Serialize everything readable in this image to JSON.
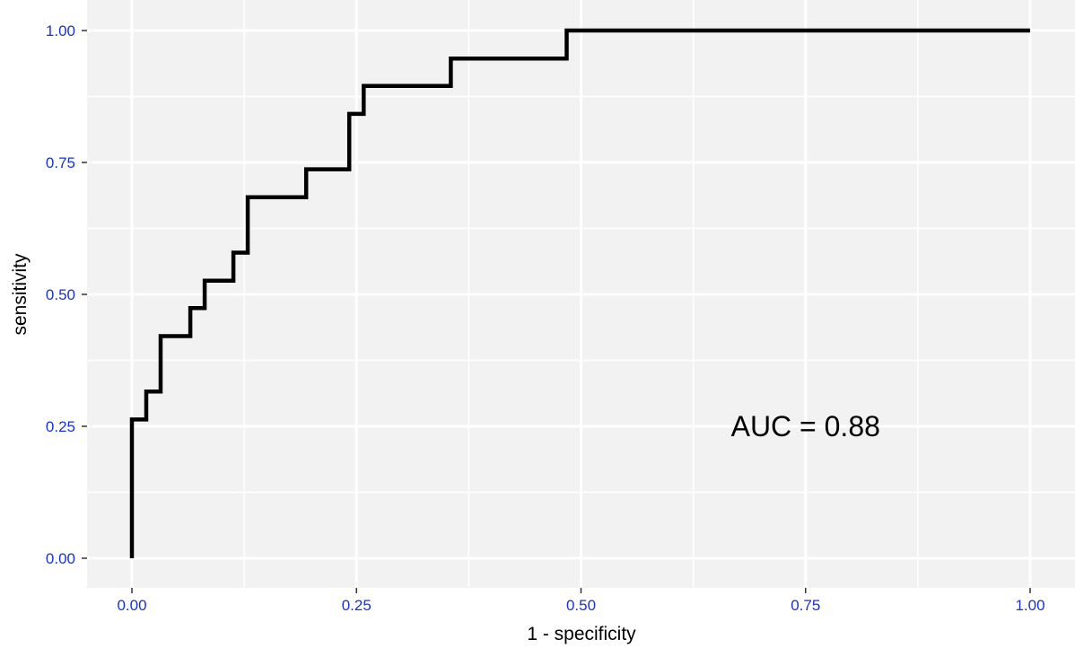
{
  "chart_data": {
    "type": "line",
    "step": true,
    "xlabel": "1 - specificity",
    "ylabel": "sensitivity",
    "xlim": [
      0,
      1
    ],
    "ylim": [
      0,
      1
    ],
    "x_ticks": [
      "0.00",
      "0.25",
      "0.50",
      "0.75",
      "1.00"
    ],
    "y_ticks": [
      "0.00",
      "0.25",
      "0.50",
      "0.75",
      "1.00"
    ],
    "grid": true,
    "tick_label_color": "#1a33cc",
    "line_color": "#000000",
    "annotation": "AUC = 0.88",
    "annotation_position": {
      "x": 0.75,
      "y": 0.25
    },
    "series": [
      {
        "x": [
          0,
          0,
          0.016,
          0.016,
          0.032,
          0.032,
          0.065,
          0.065,
          0.081,
          0.081,
          0.113,
          0.113,
          0.129,
          0.129,
          0.194,
          0.194,
          0.242,
          0.242,
          0.258,
          0.258,
          0.355,
          0.355,
          0.484,
          0.484,
          1.0
        ],
        "y": [
          0,
          0.263,
          0.263,
          0.316,
          0.316,
          0.421,
          0.421,
          0.474,
          0.474,
          0.526,
          0.526,
          0.579,
          0.579,
          0.684,
          0.684,
          0.737,
          0.737,
          0.842,
          0.842,
          0.895,
          0.895,
          0.947,
          0.947,
          1.0,
          1.0
        ]
      }
    ]
  }
}
